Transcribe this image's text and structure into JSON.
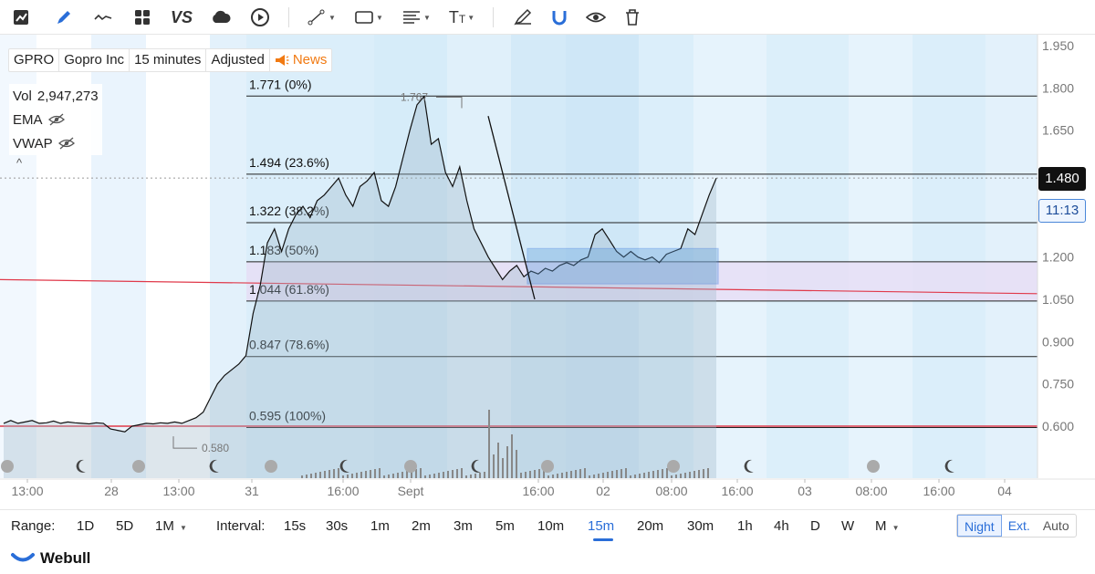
{
  "toolbar": {
    "vs_label": "VS",
    "tools": [
      "candle-chart",
      "draw-pencil",
      "line-chart",
      "grid",
      "vs",
      "cloud",
      "play",
      "trendline",
      "rectangle",
      "fib",
      "text",
      "brush",
      "magnet",
      "eye",
      "trash"
    ]
  },
  "symbol_bar": {
    "ticker": "GPRO",
    "company": "Gopro Inc",
    "interval": "15 minutes",
    "adjust": "Adjusted",
    "news": "News"
  },
  "indicators": {
    "vol_label": "Vol",
    "vol_value": "2,947,273",
    "ema_label": "EMA",
    "vwap_label": "VWAP",
    "collapse_glyph": "^"
  },
  "price_axis": {
    "ticks": [
      "1.950",
      "1.800",
      "1.650",
      "1.500",
      "1.350",
      "1.200",
      "1.050",
      "0.900",
      "0.750",
      "0.600"
    ],
    "current_price": "1.480",
    "countdown": "11:13"
  },
  "time_axis": {
    "ticks": [
      "13:00",
      "28",
      "13:00",
      "31",
      "16:00",
      "Sept",
      "16:00",
      "02",
      "08:00",
      "16:00",
      "03",
      "08:00",
      "16:00",
      "04"
    ]
  },
  "chart_data": {
    "type": "line",
    "ylim": [
      0.5,
      1.97
    ],
    "fib_levels": [
      {
        "label": "1.771 (0%)",
        "value": 1.771
      },
      {
        "label": "1.494 (23.6%)",
        "value": 1.494
      },
      {
        "label": "1.322 (38.2%)",
        "value": 1.322
      },
      {
        "label": "1.183 (50%)",
        "value": 1.183
      },
      {
        "label": "1.044 (61.8%)",
        "value": 1.044
      },
      {
        "label": "0.847 (78.6%)",
        "value": 0.847
      },
      {
        "label": "0.595 (100%)",
        "value": 0.595
      }
    ],
    "annotations": [
      {
        "label": "1.767",
        "value": 1.767
      },
      {
        "label": "0.580",
        "value": 0.58
      }
    ],
    "price_series": [
      0.61,
      0.62,
      0.61,
      0.615,
      0.62,
      0.61,
      0.612,
      0.618,
      0.61,
      0.615,
      0.612,
      0.61,
      0.608,
      0.612,
      0.61,
      0.59,
      0.585,
      0.58,
      0.6,
      0.605,
      0.61,
      0.608,
      0.612,
      0.61,
      0.615,
      0.61,
      0.62,
      0.63,
      0.65,
      0.7,
      0.75,
      0.78,
      0.8,
      0.82,
      0.85,
      1.0,
      1.1,
      1.25,
      1.3,
      1.22,
      1.3,
      1.35,
      1.38,
      1.34,
      1.4,
      1.42,
      1.45,
      1.48,
      1.42,
      1.38,
      1.45,
      1.47,
      1.5,
      1.4,
      1.38,
      1.45,
      1.55,
      1.65,
      1.74,
      1.77,
      1.6,
      1.62,
      1.5,
      1.45,
      1.52,
      1.4,
      1.3,
      1.25,
      1.2,
      1.16,
      1.12,
      1.15,
      1.17,
      1.13,
      1.15,
      1.14,
      1.16,
      1.15,
      1.17,
      1.18,
      1.17,
      1.19,
      1.2,
      1.28,
      1.3,
      1.26,
      1.22,
      1.2,
      1.22,
      1.2,
      1.19,
      1.2,
      1.18,
      1.21,
      1.22,
      1.23,
      1.3,
      1.28,
      1.35,
      1.42,
      1.48
    ]
  },
  "range_bar": {
    "range_label": "Range:",
    "ranges": [
      "1D",
      "5D",
      "1M"
    ],
    "interval_label": "Interval:",
    "intervals": [
      "15s",
      "30s",
      "1m",
      "2m",
      "3m",
      "5m",
      "10m",
      "15m",
      "20m",
      "30m",
      "1h",
      "4h",
      "D",
      "W",
      "M"
    ],
    "active_interval": "15m",
    "modes": [
      "Night",
      "Ext.",
      "Auto"
    ]
  },
  "brand": {
    "name": "Webull"
  },
  "colors": {
    "accent": "#2a6ed8",
    "news": "#f17a12",
    "red_line": "#e0394a",
    "price_tag": "#111111"
  }
}
